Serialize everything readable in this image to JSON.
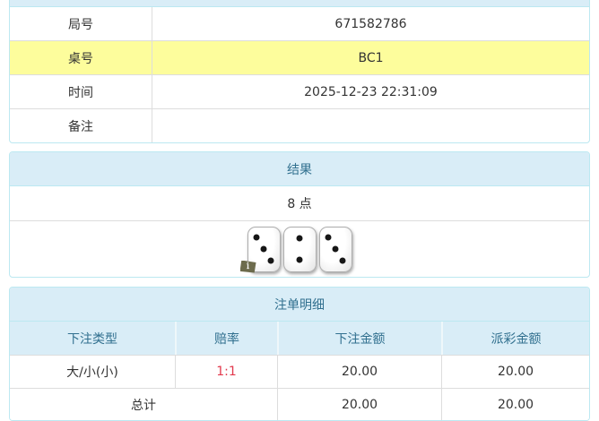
{
  "info_table": {
    "rows": [
      {
        "label": "局号",
        "value": "671582786",
        "highlight": false
      },
      {
        "label": "桌号",
        "value": "BC1",
        "highlight": true
      },
      {
        "label": "时间",
        "value": "2025-12-23 22:31:09",
        "highlight": false
      },
      {
        "label": "备注",
        "value": "",
        "highlight": false
      }
    ]
  },
  "result_panel": {
    "title": "结果",
    "points_text": "8 点",
    "dice": [
      3,
      2,
      3
    ],
    "info_badge": "i"
  },
  "bets_panel": {
    "title": "注单明细",
    "columns": [
      "下注类型",
      "赔率",
      "下注金额",
      "派彩金额"
    ],
    "rows": [
      {
        "bet_type": "大/小(小)",
        "odds": "1:1",
        "bet_amount": "20.00",
        "payout_amount": "20.00"
      }
    ],
    "total_label": "总计",
    "total_bet_amount": "20.00",
    "total_payout_amount": "20.00"
  },
  "colors": {
    "panel_border": "#bce8f1",
    "panel_header_bg": "#d9edf7",
    "panel_header_text": "#31708f",
    "highlight_row_bg": "#fdfd9c",
    "odds_red": "#e2394d",
    "row_border": "#dddddd",
    "text": "#333333"
  }
}
